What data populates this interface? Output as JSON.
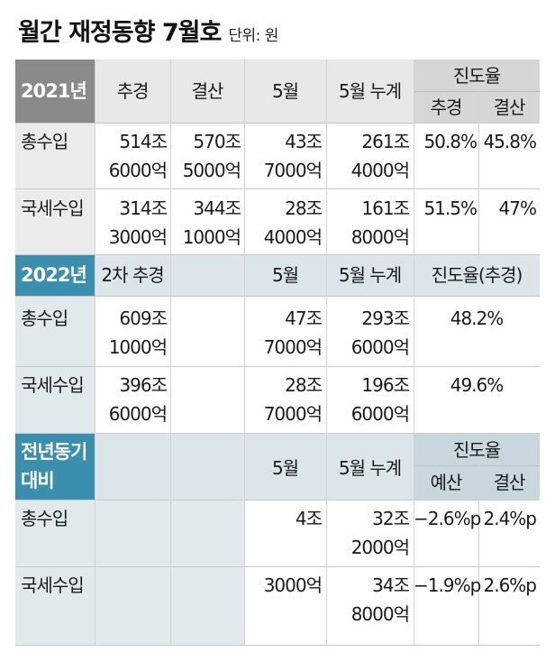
{
  "title": "월간 재정동향 7월호",
  "unit": "단위: 원",
  "colors": {
    "dark_gray": "#8a8a8a",
    "light_gray": "#d9d9d9",
    "light_gray_row": "#e6e6e6",
    "blue_dark": "#3a8fae",
    "blue_light": "#dbe5ea",
    "row_label_bg": "#e2e9ed"
  },
  "section_2021": {
    "label": "2021년",
    "headers": [
      "추경",
      "결산",
      "5월",
      "5월 누계"
    ],
    "progress_header": "진도율",
    "progress_sub": [
      "추경",
      "결산"
    ],
    "rows": [
      {
        "label": "총수입",
        "chugyeong": [
          "514조",
          "6000억"
        ],
        "gyeolsan": [
          "570조",
          "5000억"
        ],
        "may": [
          "43조",
          "7000억"
        ],
        "cum": [
          "261조",
          "4000억"
        ],
        "p1": "50.8%",
        "p2": "45.8%"
      },
      {
        "label": "국세수입",
        "chugyeong": [
          "314조",
          "3000억"
        ],
        "gyeolsan": [
          "344조",
          "1000억"
        ],
        "may": [
          "28조",
          "4000억"
        ],
        "cum": [
          "161조",
          "8000억"
        ],
        "p1": "51.5%",
        "p2": "47%"
      }
    ]
  },
  "section_2022": {
    "label": "2022년",
    "headers": [
      "2차 추경",
      "5월",
      "5월 누계",
      "진도율(추경)"
    ],
    "rows": [
      {
        "label": "총수입",
        "chugyeong": [
          "609조",
          "1000억"
        ],
        "may": [
          "47조",
          "7000억"
        ],
        "cum": [
          "293조",
          "6000억"
        ],
        "p": "48.2%"
      },
      {
        "label": "국세수입",
        "chugyeong": [
          "396조",
          "6000억"
        ],
        "may": [
          "28조",
          "7000억"
        ],
        "cum": [
          "196조",
          "6000억"
        ],
        "p": "49.6%"
      }
    ]
  },
  "section_yoy": {
    "label": [
      "전년동기",
      "대비"
    ],
    "headers": [
      "5월",
      "5월 누계"
    ],
    "progress_header": "진도율",
    "progress_sub": [
      "예산",
      "결산"
    ],
    "rows": [
      {
        "label": "총수입",
        "may": [
          "4조"
        ],
        "cum": [
          "32조",
          "2000억"
        ],
        "p1": "−2.6%p",
        "p2": "2.4%p"
      },
      {
        "label": "국세수입",
        "may": [
          "3000억"
        ],
        "cum": [
          "34조",
          "8000억"
        ],
        "p1": "−1.9%p",
        "p2": "2.6%p"
      }
    ]
  }
}
